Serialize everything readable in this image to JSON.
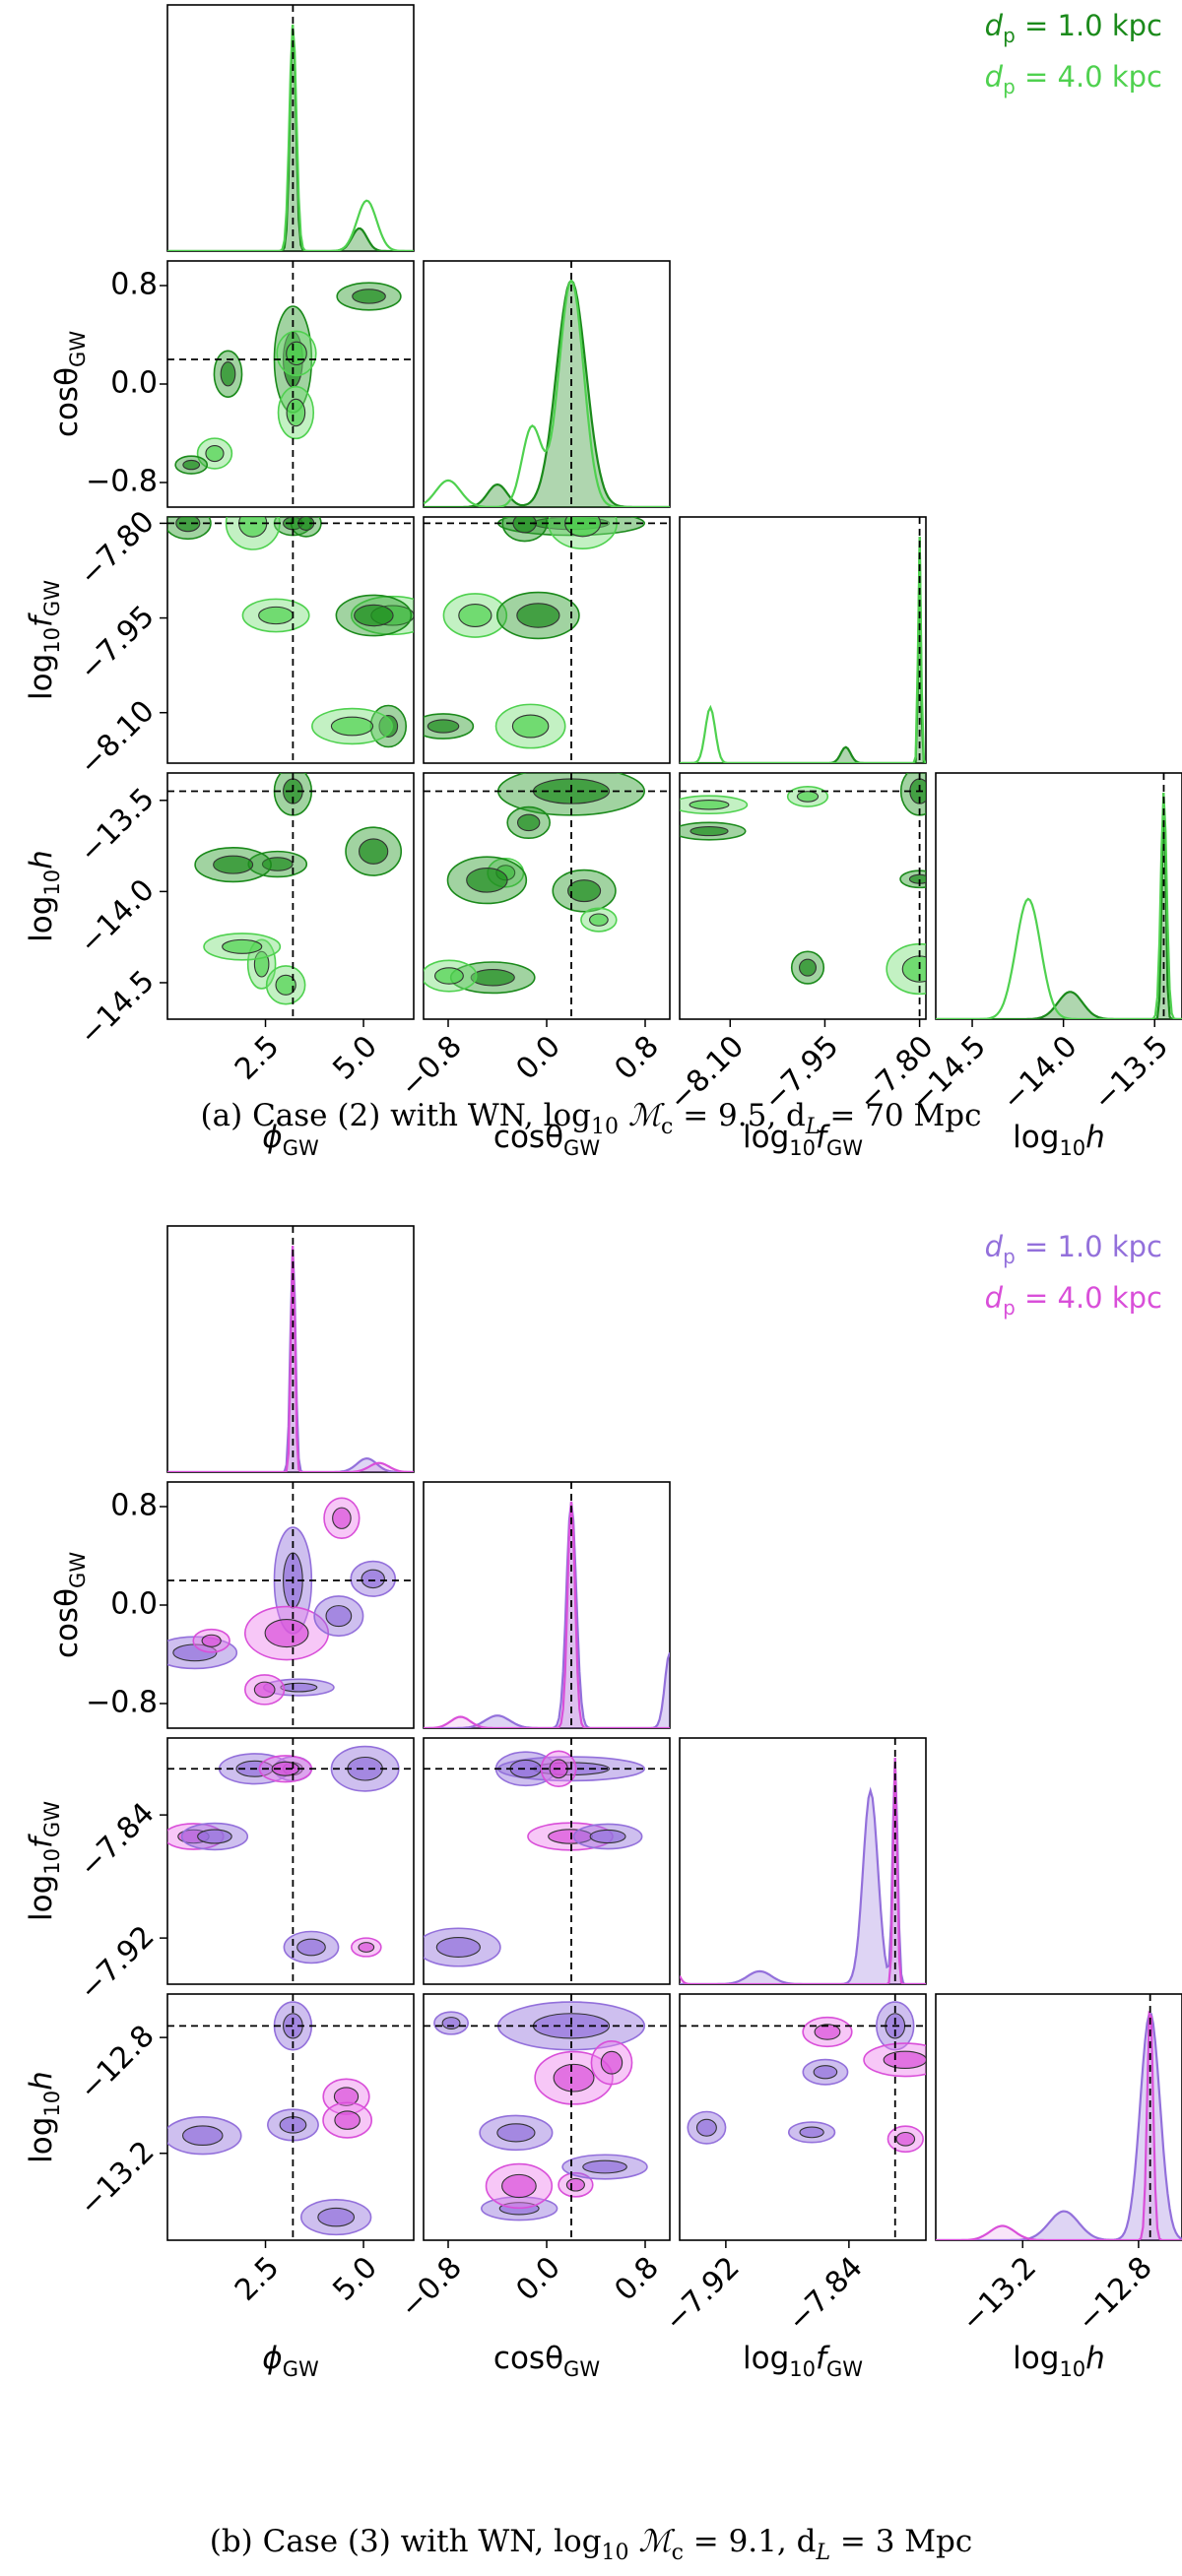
{
  "chart_data": [
    {
      "type": "corner",
      "title": "(a) Case (2) with WN, log10 Mc = 9.5, dL = 70 Mpc",
      "caption_parts": {
        "prefix": "(a)  Case (2) with WN, log",
        "sub10": "10",
        "mc_sub": "c",
        "mid": " = 9.5, ",
        "dl_sub": "L",
        "tail": " = 70 Mpc"
      },
      "parameters": [
        "φ_GW",
        "cosθ_GW",
        "log10 f_GW",
        "log10 h"
      ],
      "axis_labels": {
        "phi": {
          "main": "ϕ",
          "sub": "GW"
        },
        "cos": {
          "main": "cosθ",
          "sub": "GW"
        },
        "f": {
          "pre": "log",
          "sub10": "10",
          "main": "f",
          "sub": "GW"
        },
        "h": {
          "pre": "log",
          "sub10": "10",
          "main": "h"
        }
      },
      "ticks": {
        "phi": [
          "2.5",
          "5.0"
        ],
        "cos": [
          "−0.8",
          "0.0",
          "0.8"
        ],
        "f": [
          "−8.10",
          "−7.95",
          "−7.80"
        ],
        "h": [
          "−14.5",
          "−14.0",
          "−13.5"
        ]
      },
      "ranges": {
        "phi": [
          0,
          6.28
        ],
        "cos": [
          -1,
          1
        ],
        "f": [
          -8.18,
          -7.79
        ],
        "h": [
          -14.7,
          -13.35
        ]
      },
      "truth": {
        "phi": 3.2,
        "cos": 0.2,
        "f": -7.8,
        "h": -13.45
      },
      "legend": [
        {
          "pre": "d",
          "sub": "p",
          "text": " = 1.0 kpc",
          "color": "#1b8a1b"
        },
        {
          "pre": "d",
          "sub": "p",
          "text": " = 4.0 kpc",
          "color": "#4fd14f"
        }
      ],
      "series": [
        {
          "name": "dp = 1.0 kpc",
          "color": "#1b8a1b"
        },
        {
          "name": "dp = 4.0 kpc",
          "color": "#4fd14f"
        }
      ]
    },
    {
      "type": "corner",
      "title": "(b) Case (3) with WN, log10 Mc = 9.1, dL = 3 Mpc",
      "caption_parts": {
        "prefix": "(b)  Case (3) with WN, log",
        "sub10": "10",
        "mc_sub": "c",
        "mid": " = 9.1, ",
        "dl_sub": "L",
        "tail": " = 3 Mpc"
      },
      "parameters": [
        "φ_GW",
        "cosθ_GW",
        "log10 f_GW",
        "log10 h"
      ],
      "axis_labels": {
        "phi": {
          "main": "ϕ",
          "sub": "GW"
        },
        "cos": {
          "main": "cosθ",
          "sub": "GW"
        },
        "f": {
          "pre": "log",
          "sub10": "10",
          "main": "f",
          "sub": "GW"
        },
        "h": {
          "pre": "log",
          "sub10": "10",
          "main": "h"
        }
      },
      "ticks": {
        "phi": [
          "2.5",
          "5.0"
        ],
        "cos": [
          "−0.8",
          "0.0",
          "0.8"
        ],
        "f": [
          "−7.92",
          "−7.84"
        ],
        "h": [
          "−13.2",
          "−12.8"
        ]
      },
      "ranges": {
        "phi": [
          0,
          6.28
        ],
        "cos": [
          -1,
          1
        ],
        "f": [
          -7.95,
          -7.79
        ],
        "h": [
          -13.5,
          -12.65
        ]
      },
      "truth": {
        "phi": 3.2,
        "cos": 0.2,
        "f": -7.81,
        "h": -12.76
      },
      "legend": [
        {
          "pre": "d",
          "sub": "p",
          "text": " = 1.0 kpc",
          "color": "#9370db"
        },
        {
          "pre": "d",
          "sub": "p",
          "text": " = 4.0 kpc",
          "color": "#d94fd9"
        }
      ],
      "series": [
        {
          "name": "dp = 1.0 kpc",
          "color": "#9370db"
        },
        {
          "name": "dp = 4.0 kpc",
          "color": "#d94fd9"
        }
      ]
    }
  ]
}
